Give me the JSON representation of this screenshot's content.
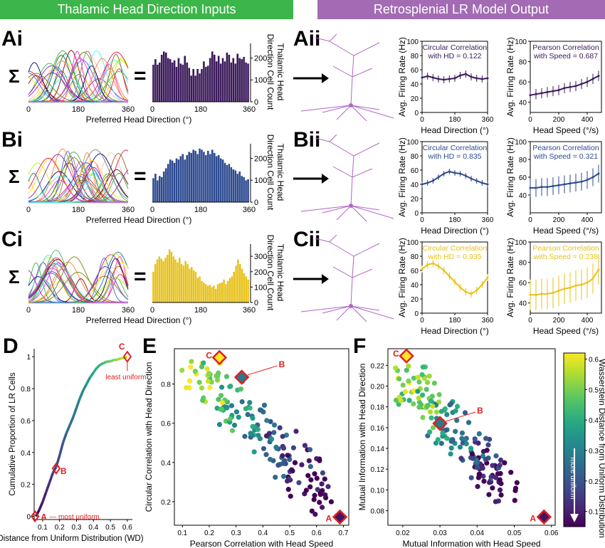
{
  "banners": {
    "left": "Thalamic Head Direction Inputs",
    "right": "Retrosplenial LR Model Output",
    "left_color": "#3cb54a",
    "right_color": "#a36bb3"
  },
  "panels": {
    "Ai": "Ai",
    "Aii": "Aii",
    "Bi": "Bi",
    "Bii": "Bii",
    "Ci": "Ci",
    "Cii": "Cii",
    "D": "D",
    "E": "E",
    "F": "F"
  },
  "symbols": {
    "sum": "Σ",
    "equals": "="
  },
  "rows": [
    {
      "fill": "#3b1a5a",
      "line": "#3b1a5a"
    },
    {
      "fill": "#2d4a8f",
      "line": "#2d4a8f"
    },
    {
      "fill": "#e8c21a",
      "line": "#e8c21a"
    }
  ],
  "neuron_color": "#b066c4",
  "chart_data": [
    {
      "type": "bar",
      "panel": "Ai-hist",
      "xlabel": "Preferred Head Direction (°)",
      "ylabel": "Thalamic Head Direction Cell Count",
      "xticks": [
        "0",
        "180",
        "360"
      ],
      "yticks": [
        "0",
        "100",
        "200"
      ],
      "ylim": [
        0,
        260
      ],
      "values": [
        170,
        195,
        170,
        180,
        215,
        230,
        225,
        200,
        195,
        180,
        190,
        160,
        200,
        175,
        170,
        210,
        180,
        155,
        120,
        150,
        120,
        150,
        130,
        150,
        185,
        160,
        165,
        200,
        230,
        215,
        185,
        210,
        175,
        200,
        185,
        225,
        215,
        180,
        200,
        175,
        220,
        200,
        195,
        205,
        180,
        175
      ]
    },
    {
      "type": "bar",
      "panel": "Bi-hist",
      "xlabel": "Preferred Head Direction (°)",
      "ylabel": "Thalamic Head Direction Cell Count",
      "xticks": [
        "0",
        "180",
        "360"
      ],
      "yticks": [
        "0",
        "100",
        "200"
      ],
      "ylim": [
        0,
        260
      ],
      "values": [
        110,
        130,
        100,
        120,
        115,
        140,
        155,
        175,
        195,
        190,
        180,
        200,
        195,
        210,
        220,
        195,
        215,
        230,
        225,
        240,
        235,
        220,
        245,
        240,
        230,
        215,
        235,
        220,
        240,
        225,
        210,
        215,
        200,
        195,
        180,
        170,
        175,
        160,
        150,
        145,
        130,
        140,
        120,
        115,
        100,
        105
      ]
    },
    {
      "type": "bar",
      "panel": "Ci-hist",
      "xlabel": "Preferred Head Direction (°)",
      "ylabel": "Thalamic Head Direction Cell Count",
      "xticks": [
        "0",
        "180",
        "360"
      ],
      "yticks": [
        "0",
        "100",
        "200",
        "300"
      ],
      "ylim": [
        0,
        370
      ],
      "values": [
        200,
        250,
        280,
        300,
        285,
        270,
        290,
        310,
        345,
        330,
        300,
        280,
        260,
        290,
        250,
        240,
        270,
        250,
        220,
        230,
        210,
        200,
        160,
        170,
        140,
        130,
        120,
        110,
        115,
        100,
        110,
        90,
        120,
        125,
        130,
        150,
        120,
        140,
        160,
        170,
        200,
        240,
        280,
        250,
        220,
        190,
        170,
        150
      ]
    },
    {
      "type": "line",
      "panel": "Aii-hd",
      "title": "Circular Correlation with HD = 0.122",
      "xlabel": "Head Direction (°)",
      "ylabel": "Avg. Firing Rate (Hz)",
      "xlim": [
        0,
        360
      ],
      "ylim": [
        0,
        100
      ],
      "xticks": [
        "0",
        "180",
        "360"
      ],
      "yticks": [
        "0",
        "20",
        "40",
        "60",
        "80",
        "100"
      ],
      "x": [
        0,
        30,
        60,
        90,
        120,
        150,
        180,
        210,
        240,
        270,
        300,
        330,
        360
      ],
      "y": [
        49,
        51,
        49,
        47,
        46,
        47,
        48,
        52,
        54,
        50,
        48,
        47,
        48
      ],
      "err": 5
    },
    {
      "type": "line",
      "panel": "Aii-speed",
      "title": "Pearson Correlation with Speed = 0.687",
      "xlabel": "Head Speed (°/s)",
      "ylabel": "Avg. Firing Rate (Hz)",
      "xlim": [
        0,
        500
      ],
      "ylim": [
        30,
        100
      ],
      "xticks": [
        "0",
        "200",
        "400"
      ],
      "yticks": [
        "40",
        "60",
        "80",
        "100"
      ],
      "x": [
        0,
        40,
        80,
        120,
        160,
        200,
        240,
        280,
        320,
        360,
        400,
        440,
        480
      ],
      "y": [
        47,
        48,
        49,
        50,
        51,
        52,
        54,
        55,
        56,
        58,
        60,
        63,
        66
      ],
      "err": 5
    },
    {
      "type": "line",
      "panel": "Bii-hd",
      "title": "Circular Correlation with HD = 0.835",
      "xlabel": "Head Direction (°)",
      "ylabel": "Avg. Firing Rate (Hz)",
      "xlim": [
        0,
        360
      ],
      "ylim": [
        0,
        100
      ],
      "xticks": [
        "0",
        "180",
        "360"
      ],
      "yticks": [
        "0",
        "20",
        "40",
        "60",
        "80",
        "100"
      ],
      "x": [
        0,
        30,
        60,
        90,
        120,
        150,
        180,
        210,
        240,
        270,
        300,
        330,
        360
      ],
      "y": [
        40,
        42,
        45,
        50,
        55,
        58,
        56,
        55,
        52,
        48,
        45,
        42,
        40
      ],
      "err": 4
    },
    {
      "type": "line",
      "panel": "Bii-speed",
      "title": "Pearson Correlation with Speed = 0.321",
      "xlabel": "Head Speed (°/s)",
      "ylabel": "Avg. Firing Rate (Hz)",
      "xlim": [
        0,
        500
      ],
      "ylim": [
        20,
        100
      ],
      "xticks": [
        "0",
        "200",
        "400"
      ],
      "yticks": [
        "40",
        "60",
        "80",
        "100"
      ],
      "x": [
        0,
        40,
        80,
        120,
        160,
        200,
        240,
        280,
        320,
        360,
        400,
        440,
        480
      ],
      "y": [
        48,
        48,
        49,
        49,
        50,
        51,
        52,
        53,
        54,
        55,
        57,
        60,
        64
      ],
      "err": 10
    },
    {
      "type": "line",
      "panel": "Cii-hd",
      "title": "Circular Correlation with HD = 0.935",
      "xlabel": "Head Direction (°)",
      "ylabel": "Avg. Firing Rate (Hz)",
      "xlim": [
        0,
        360
      ],
      "ylim": [
        0,
        100
      ],
      "xticks": [
        "0",
        "180",
        "360"
      ],
      "yticks": [
        "0",
        "20",
        "40",
        "60",
        "80",
        "100"
      ],
      "x": [
        0,
        30,
        60,
        90,
        120,
        150,
        180,
        210,
        240,
        270,
        300,
        330,
        360
      ],
      "y": [
        62,
        68,
        70,
        66,
        60,
        52,
        44,
        36,
        30,
        27,
        32,
        40,
        50
      ],
      "err": 5
    },
    {
      "type": "line",
      "panel": "Cii-speed",
      "title": "Pearson Correlation with Speed = 0.238",
      "xlabel": "Head Speed (°/s)",
      "ylabel": "Avg. Firing Rate (Hz)",
      "xlim": [
        0,
        500
      ],
      "ylim": [
        30,
        100
      ],
      "xticks": [
        "0",
        "200",
        "400"
      ],
      "yticks": [
        "40",
        "60",
        "80",
        "100"
      ],
      "x": [
        0,
        40,
        80,
        120,
        160,
        200,
        240,
        280,
        320,
        360,
        400,
        440,
        480
      ],
      "y": [
        48,
        48,
        49,
        49,
        50,
        52,
        54,
        55,
        57,
        58,
        60,
        64,
        73
      ],
      "err": 15
    },
    {
      "type": "line",
      "panel": "D",
      "xlabel": "Distance from Uniform Distribution (WD)",
      "ylabel": "Cumulative Proportion of LR Cells",
      "xlim": [
        0.05,
        0.63
      ],
      "ylim": [
        -0.02,
        1.05
      ],
      "xticks": [
        "0.1",
        "0.2",
        "0.3",
        "0.4",
        "0.5",
        "0.6"
      ],
      "yticks": [
        "0",
        "0.2",
        "0.4",
        "0.6",
        "0.8",
        "1"
      ],
      "x": [
        0.06,
        0.08,
        0.1,
        0.12,
        0.14,
        0.16,
        0.18,
        0.2,
        0.22,
        0.24,
        0.26,
        0.28,
        0.3,
        0.32,
        0.34,
        0.36,
        0.38,
        0.4,
        0.42,
        0.44,
        0.46,
        0.48,
        0.5,
        0.52,
        0.54,
        0.56,
        0.58,
        0.6
      ],
      "y": [
        0,
        0.04,
        0.09,
        0.15,
        0.21,
        0.27,
        0.31,
        0.38,
        0.46,
        0.52,
        0.57,
        0.62,
        0.68,
        0.74,
        0.79,
        0.83,
        0.87,
        0.9,
        0.93,
        0.95,
        0.96,
        0.97,
        0.97,
        0.98,
        0.98,
        0.99,
        0.99,
        1.0
      ],
      "markers": [
        {
          "label": "A",
          "x": 0.055,
          "y": 0.0,
          "note": "— most uniform"
        },
        {
          "label": "B",
          "x": 0.18,
          "y": 0.3,
          "note": ""
        },
        {
          "label": "C",
          "x": 0.6,
          "y": 1.0,
          "note": "least uniform"
        }
      ]
    },
    {
      "type": "scatter",
      "panel": "E",
      "xlabel": "Pearson Correlation with Head Speed",
      "ylabel": "Circular Correlation with Head Direction",
      "xlim": [
        0.07,
        0.72
      ],
      "ylim": [
        0.08,
        0.98
      ],
      "xticks": [
        "0.1",
        "0.2",
        "0.3",
        "0.4",
        "0.5",
        "0.6",
        "0.7"
      ],
      "yticks": [
        "0.2",
        "0.4",
        "0.6",
        "0.8"
      ],
      "markers": [
        {
          "label": "A",
          "x": 0.687,
          "y": 0.122
        },
        {
          "label": "B",
          "x": 0.321,
          "y": 0.835
        },
        {
          "label": "C",
          "x": 0.238,
          "y": 0.935
        }
      ]
    },
    {
      "type": "scatter",
      "panel": "F",
      "xlabel": "Mutual Information with Head Speed",
      "ylabel": "Mutual Information with Head Direction",
      "xlim": [
        0.016,
        0.061
      ],
      "ylim": [
        0.066,
        0.236
      ],
      "xticks": [
        "0.02",
        "0.03",
        "0.04",
        "0.05",
        "0.06"
      ],
      "yticks": [
        "0.08",
        "0.10",
        "0.12",
        "0.14",
        "0.16",
        "0.18",
        "0.20",
        "0.22"
      ],
      "markers": [
        {
          "label": "A",
          "x": 0.058,
          "y": 0.074
        },
        {
          "label": "B",
          "x": 0.03,
          "y": 0.164
        },
        {
          "label": "C",
          "x": 0.021,
          "y": 0.229
        }
      ]
    },
    {
      "type": "heatmap",
      "panel": "colorbar",
      "label": "Wasserstein Distance from Uniform Distribution",
      "arrow_label": "more uniform",
      "range": [
        0.05,
        0.62
      ],
      "ticks": [
        "0.1",
        "0.2",
        "0.3",
        "0.4",
        "0.5",
        "0.6"
      ]
    }
  ]
}
